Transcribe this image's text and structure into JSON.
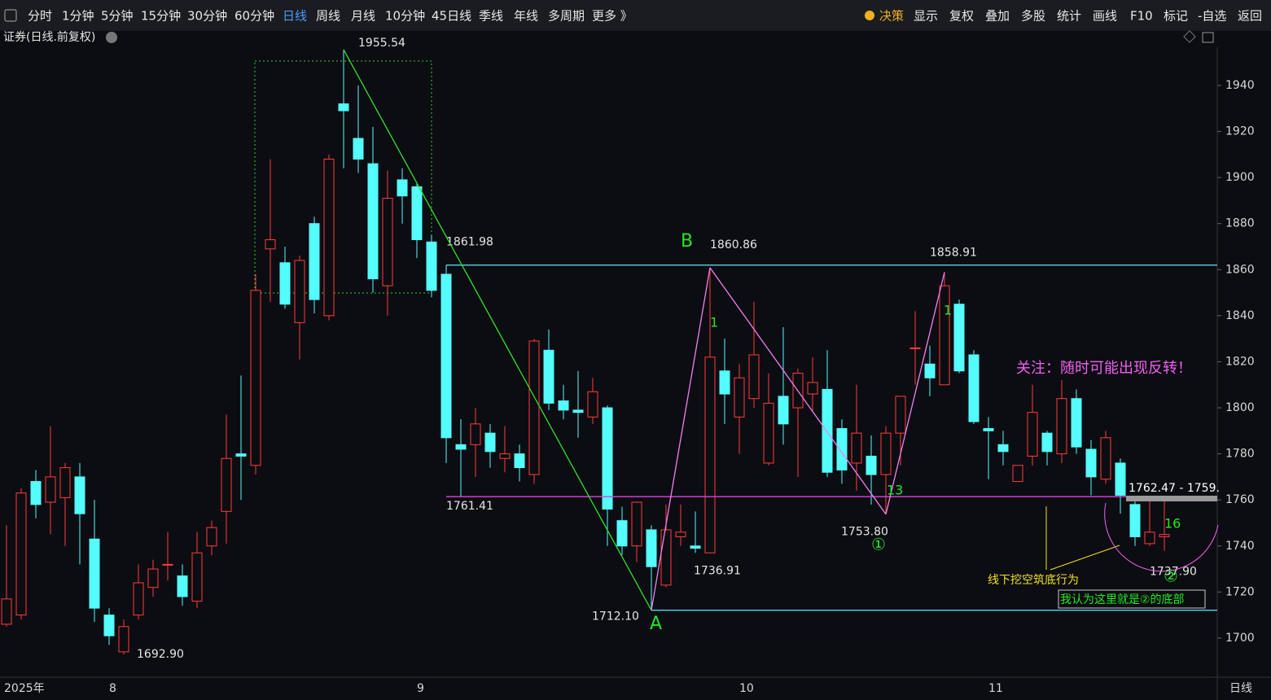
{
  "toolbar": {
    "left": [
      "分时",
      "1分钟",
      "5分钟",
      "15分钟",
      "30分钟",
      "60分钟",
      "日线",
      "周线",
      "月线",
      "10分钟",
      "45日线",
      "季线",
      "年线",
      "多周期",
      "更多 》"
    ],
    "right": [
      "决策",
      "显示",
      "复权",
      "叠加",
      "多股",
      "统计",
      "画线",
      "F10",
      "标记",
      "-自选",
      "返回"
    ]
  },
  "header": "证券(日线.前复权)",
  "chart_data": {
    "type": "candlestick",
    "categories": [
      "2025年",
      null,
      null,
      null,
      null,
      null,
      null,
      "8",
      null,
      null,
      null,
      null,
      null,
      null,
      null,
      null,
      null,
      null,
      null,
      null,
      null,
      null,
      null,
      null,
      null,
      null,
      null,
      null,
      "9",
      null,
      null,
      null,
      null,
      null,
      null,
      null,
      null,
      null,
      null,
      null,
      null,
      null,
      null,
      null,
      null,
      null,
      null,
      null,
      null,
      null,
      "10",
      null,
      null,
      null,
      null,
      null,
      null,
      null,
      null,
      null,
      null,
      null,
      null,
      null,
      null,
      null,
      null,
      "11",
      null,
      null,
      null,
      null,
      null,
      null,
      null,
      null,
      null,
      null,
      null,
      null
    ],
    "open": [
      1706,
      1710,
      1768,
      1759,
      1761,
      1770,
      1743,
      1710,
      1694,
      1710,
      1722,
      1732,
      1727,
      1716,
      1740,
      1755,
      1780,
      1775,
      1869,
      1863,
      1837,
      1880,
      1840,
      1932,
      1917,
      1906,
      1853,
      1899,
      1896,
      1872,
      1858,
      1784,
      1784,
      1789,
      1778,
      1780,
      1771,
      1825,
      1803,
      1799,
      1796,
      1800,
      1751,
      1740,
      1747,
      1723,
      1744,
      1740,
      1737,
      1816,
      1796,
      1804,
      1776,
      1805,
      1800,
      1806,
      1808,
      1791,
      1776,
      1779,
      1771,
      1789,
      1826,
      1819,
      1810,
      1845,
      1823,
      1791,
      1784,
      1768,
      1779,
      1789,
      1780,
      1804,
      1782,
      1769,
      1776,
      1758,
      1741,
      1744
    ],
    "high": [
      1749,
      1765,
      1773,
      1792,
      1776,
      1776,
      1760,
      1713,
      1708,
      1732,
      1734,
      1746,
      1732,
      1746,
      1751,
      1797,
      1814,
      1858,
      1908,
      1870,
      1866,
      1883,
      1910,
      1955.54,
      1940,
      1922,
      1903,
      1904,
      1898,
      1875,
      1861.98,
      1795,
      1800,
      1793,
      1792,
      1784,
      1830,
      1834,
      1810,
      1816,
      1813,
      1801,
      1757,
      1759,
      1749,
      1758,
      1758,
      1755,
      1860.86,
      1830,
      1819,
      1846,
      1815,
      1835,
      1817,
      1822,
      1825,
      1795,
      1810,
      1788,
      1792,
      1805,
      1842,
      1827,
      1858.91,
      1847,
      1825,
      1796,
      1790,
      1775,
      1810,
      1790,
      1812,
      1808,
      1786,
      1790,
      1778,
      1760,
      1760,
      1760
    ],
    "low": [
      1705,
      1708,
      1752,
      1745,
      1740,
      1732,
      1707,
      1697,
      1692.9,
      1708,
      1718,
      1725,
      1714,
      1713,
      1736,
      1741,
      1760,
      1771,
      1846,
      1843,
      1821,
      1841,
      1838,
      1904,
      1902,
      1850,
      1840,
      1880,
      1865,
      1848,
      1776,
      1761.41,
      1770,
      1774,
      1772,
      1768,
      1767,
      1799,
      1795,
      1787,
      1793,
      1740,
      1736,
      1733,
      1712.1,
      1722,
      1740,
      1737,
      1736.91,
      1793,
      1780,
      1800,
      1775,
      1784,
      1770,
      1798,
      1770,
      1767,
      1764,
      1758,
      1753.8,
      1775,
      1810,
      1805,
      1810,
      1815,
      1793,
      1769,
      1775,
      1768,
      1775,
      1775,
      1776,
      1780,
      1762,
      1767,
      1754,
      1740,
      1740,
      1737.9
    ],
    "close": [
      1717,
      1763,
      1758,
      1770,
      1774,
      1754,
      1713,
      1701,
      1705,
      1724,
      1730,
      1732,
      1718,
      1737,
      1748,
      1778,
      1779,
      1851,
      1873,
      1845,
      1864,
      1847,
      1908,
      1929,
      1908,
      1856,
      1891,
      1892,
      1873,
      1851,
      1787,
      1782,
      1793,
      1781,
      1780,
      1774,
      1829,
      1802,
      1799,
      1798,
      1807,
      1756,
      1740,
      1759,
      1731,
      1747,
      1746,
      1739,
      1822,
      1806,
      1813,
      1823,
      1802,
      1793,
      1815,
      1811,
      1772,
      1773,
      1789,
      1771,
      1789,
      1805,
      1826,
      1813,
      1853,
      1816,
      1794,
      1790,
      1781,
      1775,
      1798,
      1781,
      1804,
      1783,
      1770,
      1787,
      1762,
      1744,
      1746,
      1745
    ],
    "up_color": "#ff3c3c",
    "down_color": "#54fcfc",
    "ylim": [
      1683,
      1956.6
    ],
    "yticks": [
      1700,
      1720,
      1740,
      1760,
      1780,
      1800,
      1820,
      1840,
      1860,
      1880,
      1900,
      1920,
      1940
    ],
    "levels": [
      {
        "value": 1861.98,
        "label": "1861.98",
        "color": "#4fd8e8"
      },
      {
        "value": 1761.41,
        "label": "1761.41",
        "color": "#e040e0"
      },
      {
        "value": 1712.1,
        "label": "1712.10",
        "color": "#4fd8e8"
      }
    ],
    "price_labels": [
      {
        "value": 1955.54,
        "label": "1955.54"
      },
      {
        "value": 1692.9,
        "label": "1692.90"
      },
      {
        "value": 1860.86,
        "label": "1860.86"
      },
      {
        "value": 1858.91,
        "label": "1858.91"
      },
      {
        "value": 1753.8,
        "label": "1753.80"
      },
      {
        "value": 1736.91,
        "label": "1736.91"
      },
      {
        "value": 1737.9,
        "label": "1737.90"
      }
    ],
    "annotations": [
      {
        "text": "B",
        "color": "#22e822"
      },
      {
        "text": "A",
        "color": "#22e822"
      },
      {
        "text": "1",
        "color": "#22e822"
      },
      {
        "text": "1",
        "color": "#22e822"
      },
      {
        "text": "13",
        "color": "#22e822"
      },
      {
        "text": "16",
        "color": "#22e822"
      },
      {
        "text": "①",
        "color": "#22e822"
      },
      {
        "text": "②",
        "color": "#22e822"
      },
      {
        "text": "关注：随时可能出现反转！",
        "color": "#f060f0"
      },
      {
        "text": "线下挖空筑底行为",
        "color": "#f0e020"
      },
      {
        "text": "我认为这里就是②的底部",
        "color": "#22e822"
      },
      {
        "text": "1762.47 - 1759.",
        "color": "#ffffff"
      }
    ],
    "period_label": "日线"
  }
}
